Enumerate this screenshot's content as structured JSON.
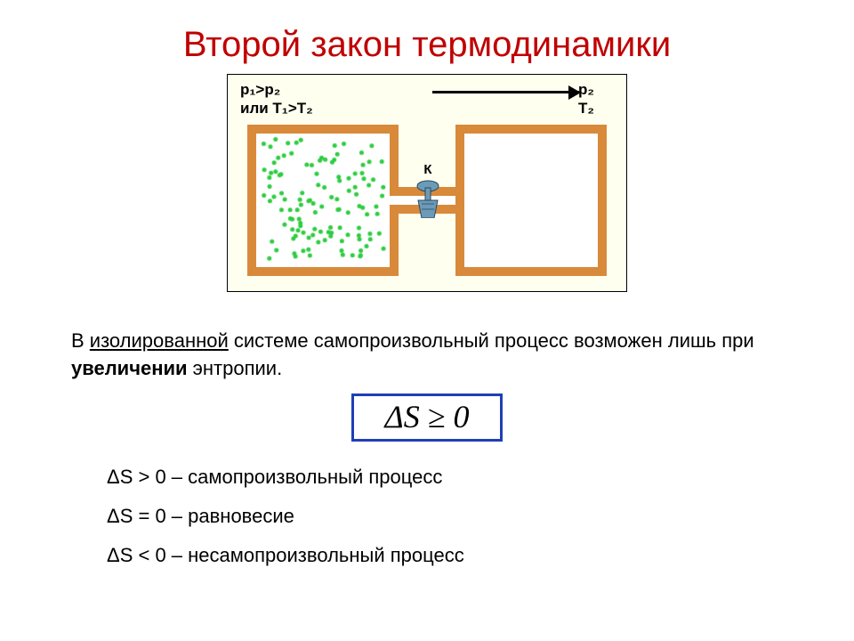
{
  "title": {
    "text": "Второй закон термодинамики",
    "color": "#c00000"
  },
  "diagram": {
    "bg_inner": "#fffff0",
    "border_color": "#d88a3a",
    "chamber_size": 170,
    "label_left_line1": "p₁>p₂",
    "label_left_line2": "или T₁>T₂",
    "label_right_line1": "p₂",
    "label_right_line2": "T₂",
    "valve_label": "К",
    "valve_color": "#5a8aa8",
    "dot_color": "#2ecc40",
    "dot_count": 120,
    "dot_radius": 2.5
  },
  "body": {
    "part1": "В ",
    "underlined": "изолированной",
    "part2": " системе самопроизвольный процесс возможен лишь при ",
    "bold": "увеличении",
    "part3": " энтропии."
  },
  "formula": {
    "text": "ΔS ≥ 0",
    "border_color": "#1f3fb5"
  },
  "list": {
    "item1": "ΔS > 0 – самопроизвольный процесс",
    "item2": "ΔS = 0 – равновесие",
    "item3": "ΔS < 0 – несамопроизвольный процесс"
  }
}
